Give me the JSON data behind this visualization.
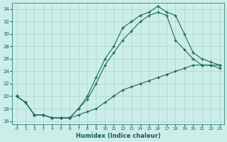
{
  "xlabel": "Humidex (Indice chaleur)",
  "bg_color": "#cceee8",
  "line_color": "#1a6b60",
  "grid_color": "#aad4cc",
  "xlim": [
    -0.5,
    23.5
  ],
  "ylim": [
    15.5,
    35
  ],
  "yticks": [
    16,
    18,
    20,
    22,
    24,
    26,
    28,
    30,
    32,
    34
  ],
  "xticks": [
    0,
    1,
    2,
    3,
    4,
    5,
    6,
    7,
    8,
    9,
    10,
    11,
    12,
    13,
    14,
    15,
    16,
    17,
    18,
    19,
    20,
    21,
    22,
    23
  ],
  "line1_x": [
    0,
    1,
    2,
    3,
    4,
    5,
    6,
    7,
    8,
    9,
    10,
    11,
    12,
    13,
    14,
    15,
    16,
    17,
    18,
    19,
    20,
    21,
    22,
    23
  ],
  "line1_y": [
    20,
    19,
    17,
    17,
    16.5,
    16.5,
    16.5,
    18,
    20,
    23,
    26,
    28,
    31,
    32,
    33,
    33.5,
    34.5,
    33.5,
    33,
    30,
    27,
    26,
    25.5,
    25
  ],
  "line2_x": [
    0,
    1,
    2,
    3,
    4,
    5,
    6,
    7,
    8,
    9,
    10,
    11,
    12,
    13,
    14,
    15,
    16,
    17,
    18,
    19,
    20,
    21,
    22,
    23
  ],
  "line2_y": [
    20,
    19,
    17,
    17,
    16.5,
    16.5,
    16.5,
    18,
    19.5,
    22,
    25,
    27,
    29,
    30.5,
    32,
    33,
    33.5,
    33,
    29,
    27.5,
    26,
    25,
    25,
    24.5
  ],
  "line3_x": [
    0,
    1,
    2,
    3,
    4,
    5,
    6,
    7,
    8,
    9,
    10,
    11,
    12,
    13,
    14,
    15,
    16,
    17,
    18,
    19,
    20,
    21,
    22,
    23
  ],
  "line3_y": [
    20,
    19,
    17,
    17,
    16.5,
    16.5,
    16.5,
    17,
    17.5,
    18,
    19,
    20,
    21,
    21.5,
    22,
    22.5,
    23,
    23.5,
    24,
    24.5,
    25,
    25,
    25,
    25
  ]
}
